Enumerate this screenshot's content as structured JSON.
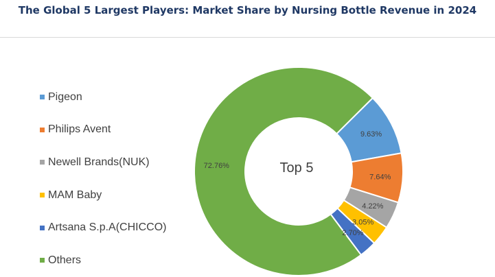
{
  "title": "The Global 5 Largest Players: Market Share by Nursing Bottle Revenue in 2024",
  "chart_data": {
    "type": "pie",
    "donut": true,
    "center_label": "Top 5",
    "legend_position": "left",
    "slices": [
      {
        "name": "Pigeon",
        "value": 9.63,
        "label": "9.63%",
        "color": "#5b9bd5"
      },
      {
        "name": "Philips Avent",
        "value": 7.64,
        "label": "7.64%",
        "color": "#ed7d31"
      },
      {
        "name": "Newell Brands(NUK)",
        "value": 4.22,
        "label": "4.22%",
        "color": "#a5a5a5"
      },
      {
        "name": "MAM Baby",
        "value": 3.05,
        "label": "3.05%",
        "color": "#ffc000"
      },
      {
        "name": "Artsana S.p.A(CHICCO)",
        "value": 2.7,
        "label": "2.70%",
        "color": "#4472c4"
      },
      {
        "name": "Others",
        "value": 72.76,
        "label": "72.76%",
        "color": "#70ad47"
      }
    ]
  }
}
